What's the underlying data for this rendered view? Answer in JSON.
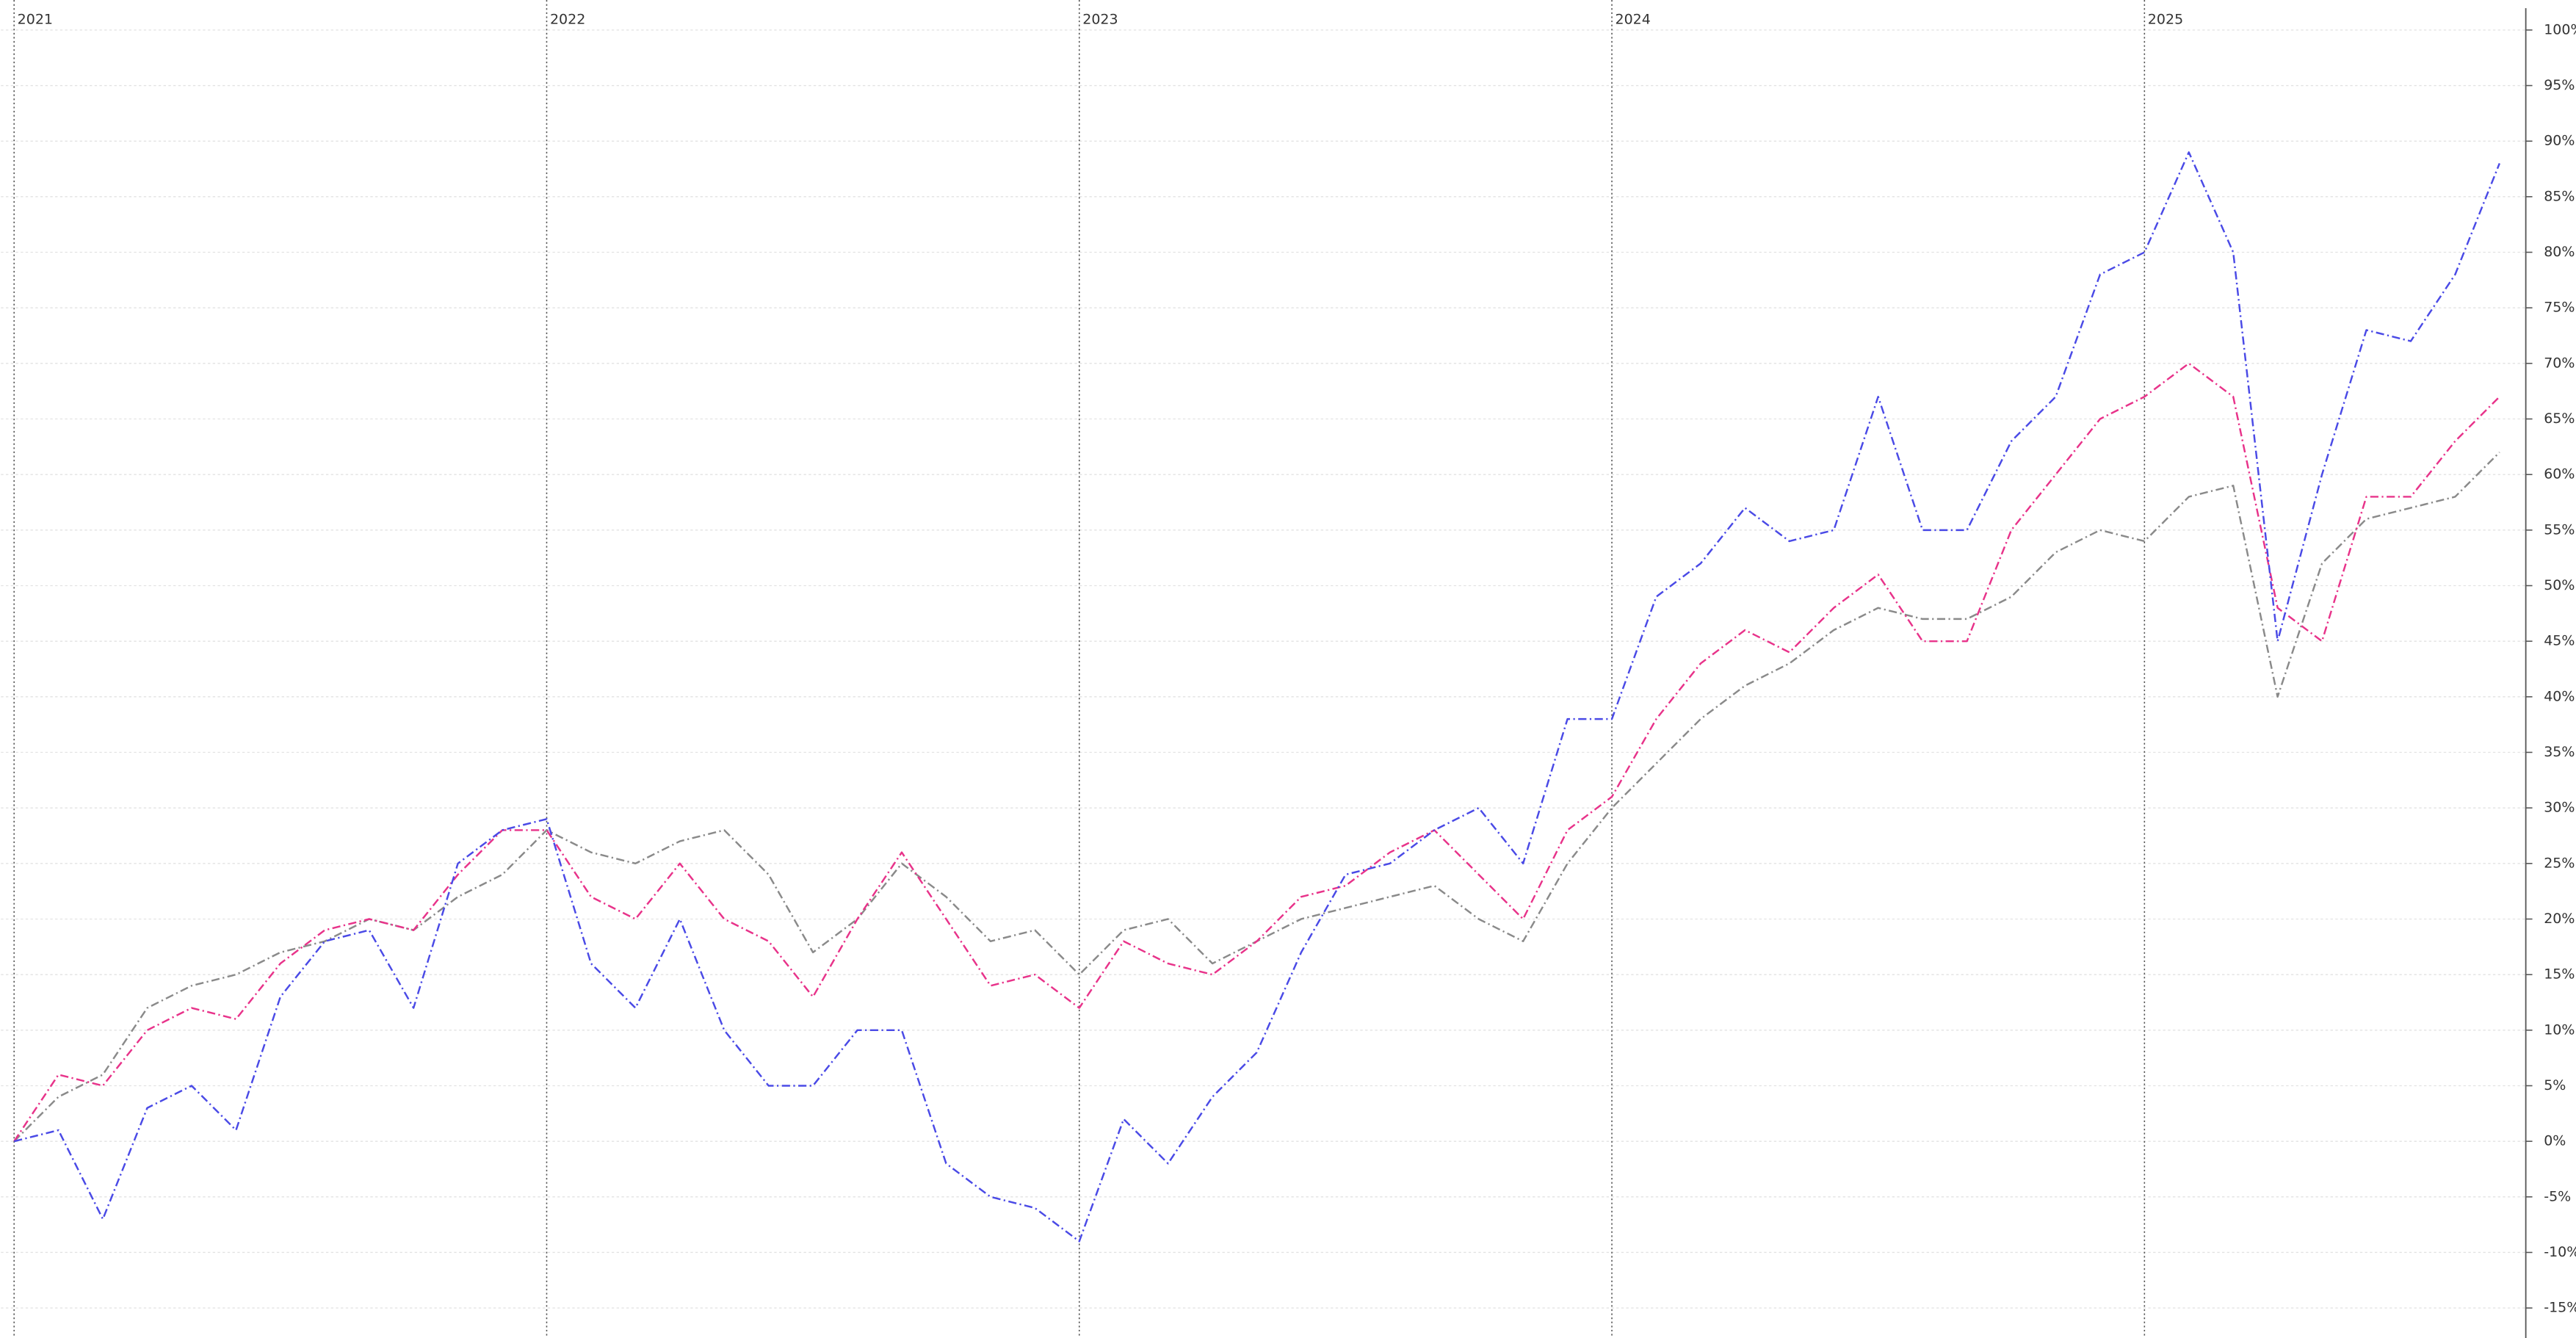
{
  "chart_data": {
    "type": "line",
    "categories": [
      "2021",
      null,
      null,
      null,
      null,
      null,
      null,
      null,
      null,
      null,
      null,
      null,
      "2022",
      null,
      null,
      null,
      null,
      null,
      null,
      null,
      null,
      null,
      null,
      null,
      "2023",
      null,
      null,
      null,
      null,
      null,
      null,
      null,
      null,
      null,
      null,
      null,
      "2024",
      null,
      null,
      null,
      null,
      null,
      null,
      null,
      null,
      null,
      null,
      null,
      "2025",
      null,
      null,
      null,
      null,
      null,
      null,
      null,
      null
    ],
    "series": [
      {
        "name": null,
        "color": "#4a4ae6",
        "values": [
          0,
          1,
          -7,
          3,
          5,
          1,
          13,
          18,
          19,
          12,
          25,
          28,
          29,
          16,
          12,
          20,
          10,
          5,
          5,
          10,
          10,
          -2,
          -5,
          -6,
          -9,
          2,
          -2,
          4,
          8,
          17,
          24,
          25,
          28,
          30,
          25,
          38,
          38,
          49,
          52,
          57,
          54,
          55,
          67,
          55,
          55,
          63,
          67,
          78,
          80,
          89,
          80,
          45,
          60,
          73,
          72,
          78,
          88
        ]
      },
      {
        "name": null,
        "color": "#e8338a",
        "values": [
          0,
          6,
          5,
          10,
          12,
          11,
          16,
          19,
          20,
          19,
          24,
          28,
          28,
          22,
          20,
          25,
          20,
          18,
          13,
          20,
          26,
          20,
          14,
          15,
          12,
          18,
          16,
          15,
          18,
          22,
          23,
          26,
          28,
          24,
          20,
          28,
          31,
          38,
          43,
          46,
          44,
          48,
          51,
          45,
          45,
          55,
          60,
          65,
          67,
          70,
          67,
          48,
          45,
          58,
          58,
          63,
          67
        ]
      },
      {
        "name": null,
        "color": "#8a8a8a",
        "values": [
          0,
          4,
          6,
          12,
          14,
          15,
          17,
          18,
          20,
          19,
          22,
          24,
          28,
          26,
          25,
          27,
          28,
          24,
          17,
          20,
          25,
          22,
          18,
          19,
          15,
          19,
          20,
          16,
          18,
          20,
          21,
          22,
          23,
          20,
          18,
          25,
          30,
          34,
          38,
          41,
          43,
          46,
          48,
          47,
          47,
          49,
          53,
          55,
          54,
          58,
          59,
          40,
          52,
          56,
          57,
          58,
          62
        ]
      }
    ],
    "ylim": [
      -17.7,
      102.7
    ],
    "yticks": [
      {
        "value": -15,
        "label": "-15%"
      },
      {
        "value": -10,
        "label": "-10%"
      },
      {
        "value": -5,
        "label": "-5%"
      },
      {
        "value": 0,
        "label": "0%"
      },
      {
        "value": 5,
        "label": "5%"
      },
      {
        "value": 10,
        "label": "10%"
      },
      {
        "value": 15,
        "label": "15%"
      },
      {
        "value": 20,
        "label": "20%"
      },
      {
        "value": 25,
        "label": "25%"
      },
      {
        "value": 30,
        "label": "30%"
      },
      {
        "value": 35,
        "label": "35%"
      },
      {
        "value": 40,
        "label": "40%"
      },
      {
        "value": 45,
        "label": "45%"
      },
      {
        "value": 50,
        "label": "50%"
      },
      {
        "value": 55,
        "label": "55%"
      },
      {
        "value": 60,
        "label": "60%"
      },
      {
        "value": 65,
        "label": "65%"
      },
      {
        "value": 70,
        "label": "70%"
      },
      {
        "value": 75,
        "label": "75%"
      },
      {
        "value": 80,
        "label": "80%"
      },
      {
        "value": 85,
        "label": "85%"
      },
      {
        "value": 90,
        "label": "90%"
      },
      {
        "value": 95,
        "label": "95%"
      },
      {
        "value": 100,
        "label": "100%"
      }
    ],
    "grid": true
  }
}
